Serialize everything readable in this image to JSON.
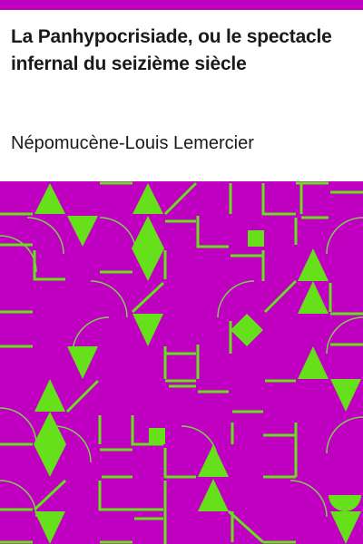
{
  "book": {
    "title": "La Panhypocrisiade, ou le spectacle infernal du seizième siècle",
    "author": "Népomucène-Louis Lemercier"
  },
  "colors": {
    "accent": "#c000c0",
    "pattern_background": "#c000c0",
    "pattern_shapes": "#66e01a",
    "text": "#1a1a1a",
    "page_background": "#ffffff"
  }
}
